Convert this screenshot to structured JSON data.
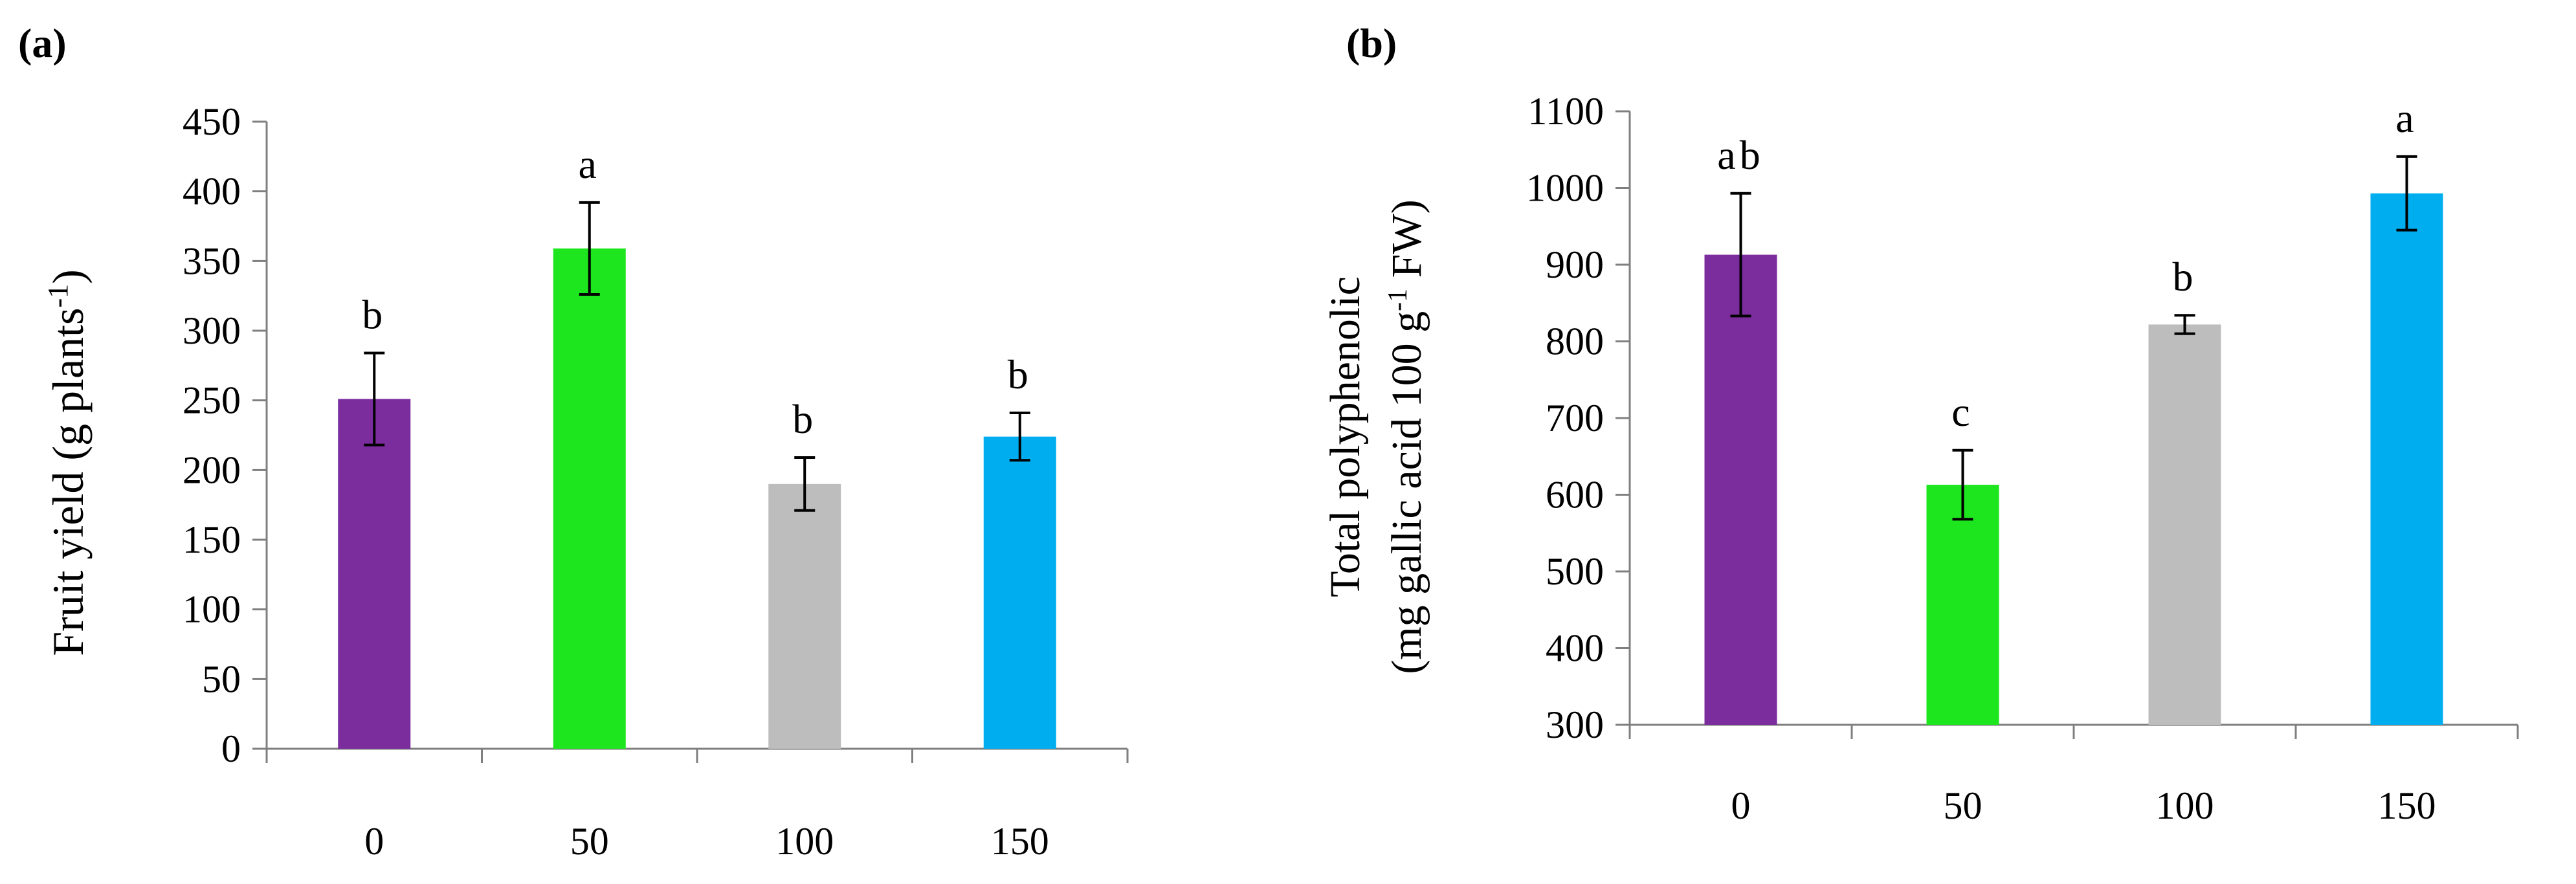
{
  "chart_data": [
    {
      "type": "bar",
      "panel_label": "(a)",
      "title": "",
      "categories": [
        "0",
        "50",
        "100",
        "150"
      ],
      "values": [
        251,
        359,
        190,
        224
      ],
      "errors": [
        33,
        33,
        19,
        17
      ],
      "significance_letters": [
        "b",
        "a",
        "b",
        "b"
      ],
      "colors": [
        "#7b2d9e",
        "#1ee61e",
        "#bdbdbd",
        "#00aeef"
      ],
      "xlabel": "",
      "ylabel_parts": {
        "main": "Fruit yield (g plants",
        "sup": "-1",
        "end": ")"
      },
      "ylim": [
        0,
        450
      ],
      "yticks": [
        0,
        50,
        100,
        150,
        200,
        250,
        300,
        350,
        400,
        450
      ],
      "grid": false
    },
    {
      "type": "bar",
      "panel_label": "(b)",
      "title": "",
      "categories": [
        "0",
        "50",
        "100",
        "150"
      ],
      "values": [
        913,
        613,
        822,
        993
      ],
      "errors": [
        80,
        45,
        12,
        48
      ],
      "significance_letters": [
        "ab",
        "c",
        "b",
        "a"
      ],
      "colors": [
        "#7b2d9e",
        "#1ee61e",
        "#bdbdbd",
        "#00aeef"
      ],
      "xlabel": "",
      "ylabel_line1": "Total polyphenolic",
      "ylabel_line2_parts": {
        "main": "(mg gallic  acid 100 g",
        "sup": "-1",
        "end": " FW)"
      },
      "ylim": [
        300,
        1100
      ],
      "yticks": [
        300,
        400,
        500,
        600,
        700,
        800,
        900,
        1000,
        1100
      ],
      "grid": false
    }
  ]
}
